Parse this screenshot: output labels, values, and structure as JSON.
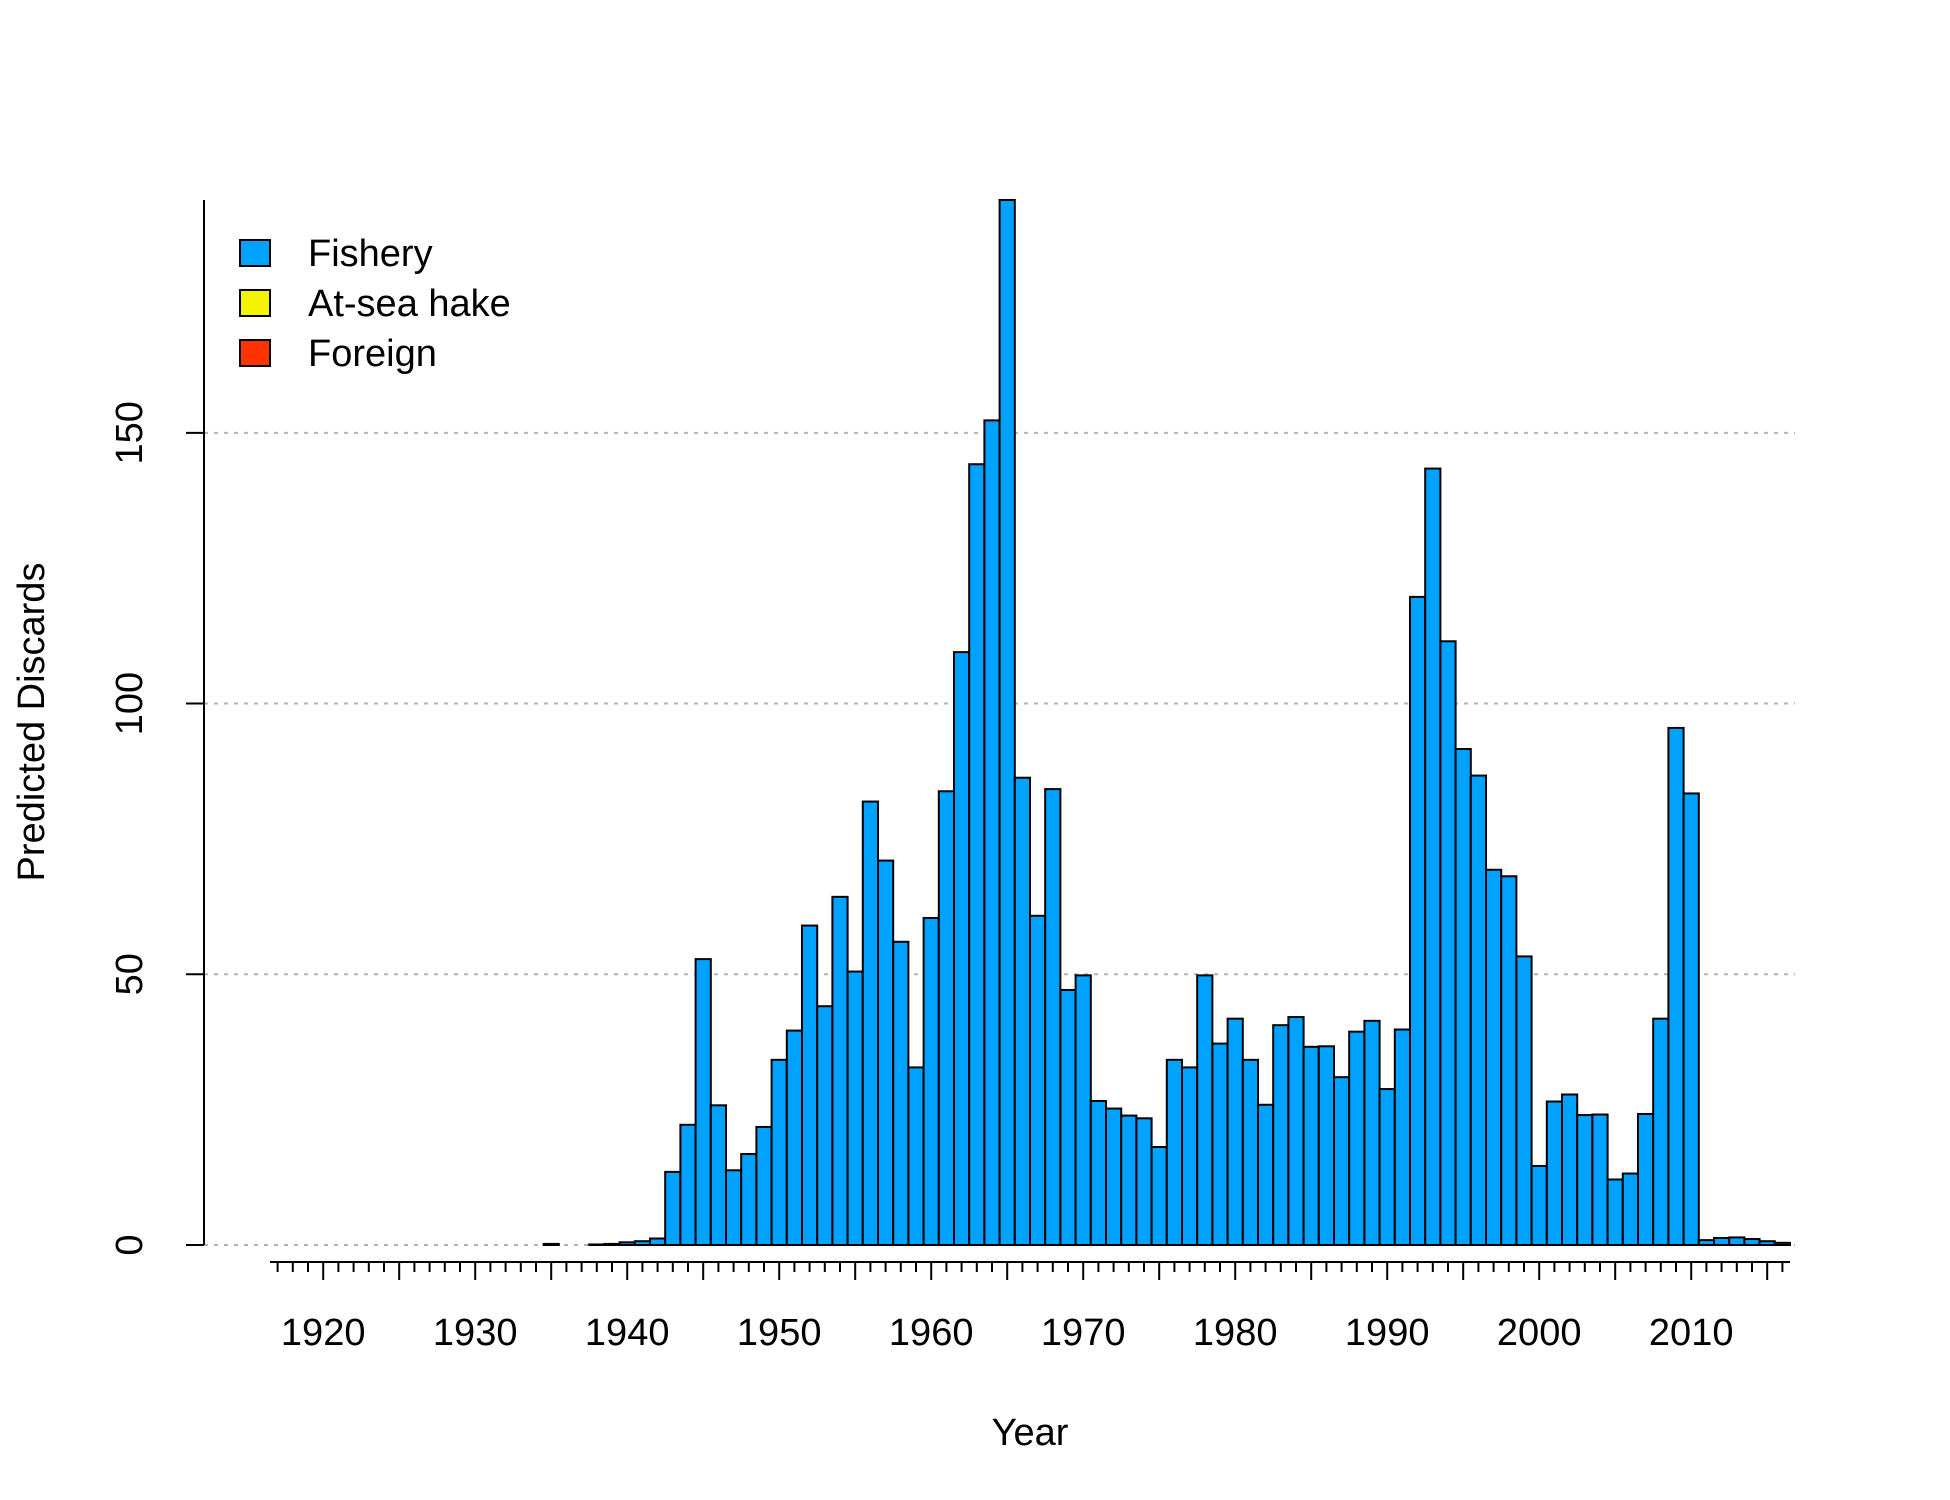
{
  "chart_data": {
    "type": "bar",
    "xlabel": "Year",
    "ylabel": "Predicted Discards",
    "xlim": [
      1916.5,
      2016.5
    ],
    "ylim": [
      0,
      193
    ],
    "grid": true,
    "legend_position": "top-left",
    "x_ticks": [
      1920,
      1930,
      1940,
      1950,
      1960,
      1970,
      1980,
      1990,
      2000,
      2010
    ],
    "y_ticks": [
      0,
      50,
      100,
      150
    ],
    "legend": [
      {
        "label": "Fishery",
        "color": "#00a2ff"
      },
      {
        "label": "At-sea hake",
        "color": "#f4f400"
      },
      {
        "label": "Foreign",
        "color": "#ff3300"
      }
    ],
    "series": [
      {
        "name": "Fishery",
        "color": "#00a2ff",
        "x": [
          1916,
          1917,
          1918,
          1919,
          1920,
          1921,
          1922,
          1923,
          1924,
          1925,
          1926,
          1927,
          1928,
          1929,
          1930,
          1931,
          1932,
          1933,
          1934,
          1935,
          1936,
          1937,
          1938,
          1939,
          1940,
          1941,
          1942,
          1943,
          1944,
          1945,
          1946,
          1947,
          1948,
          1949,
          1950,
          1951,
          1952,
          1953,
          1954,
          1955,
          1956,
          1957,
          1958,
          1959,
          1960,
          1961,
          1962,
          1963,
          1964,
          1965,
          1966,
          1967,
          1968,
          1969,
          1970,
          1971,
          1972,
          1973,
          1974,
          1975,
          1976,
          1977,
          1978,
          1979,
          1980,
          1981,
          1982,
          1983,
          1984,
          1985,
          1986,
          1987,
          1988,
          1989,
          1990,
          1991,
          1992,
          1993,
          1994,
          1995,
          1996,
          1997,
          1998,
          1999,
          2000,
          2001,
          2002,
          2003,
          2004,
          2005,
          2006,
          2007,
          2008,
          2009,
          2010,
          2011,
          2012,
          2013,
          2014,
          2015,
          2016
        ],
        "values": [
          0,
          0,
          0,
          0,
          0,
          0,
          0,
          0,
          0,
          0,
          0,
          0,
          0,
          0,
          0,
          0,
          0,
          0,
          0,
          0.2,
          0,
          0,
          0.1,
          0.2,
          0.5,
          0.7,
          1.2,
          13.5,
          22.2,
          52.8,
          25.8,
          13.8,
          16.8,
          21.8,
          34.2,
          39.6,
          59,
          44.1,
          64.3,
          50.5,
          81.9,
          71,
          56,
          32.8,
          60.4,
          83.8,
          109.5,
          144.2,
          152.3,
          193,
          86.3,
          60.8,
          84.2,
          47.1,
          49.8,
          26.6,
          25.2,
          23.9,
          23.4,
          18.1,
          34.2,
          32.8,
          49.8,
          37.2,
          41.8,
          34.2,
          25.9,
          40.6,
          42.1,
          36.6,
          36.7,
          31,
          39.4,
          41.4,
          28.8,
          39.8,
          119.7,
          143.4,
          111.5,
          91.6,
          86.7,
          69.3,
          68.1,
          53.3,
          14.6,
          26.5,
          27.8,
          24,
          24.1,
          12.1,
          13.2,
          24.2,
          41.8,
          95.5,
          83.4,
          0.9,
          1.3,
          1.4,
          1.1,
          0.7,
          0.4
        ]
      },
      {
        "name": "At-sea hake",
        "color": "#f4f400",
        "values": []
      },
      {
        "name": "Foreign",
        "color": "#ff3300",
        "values": []
      }
    ]
  }
}
